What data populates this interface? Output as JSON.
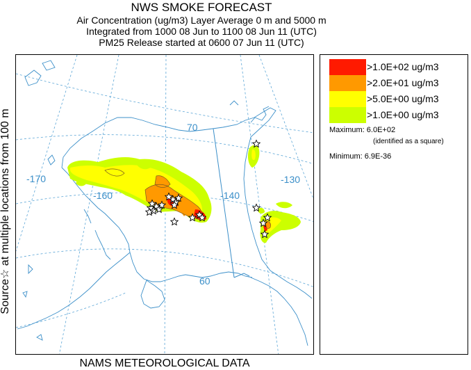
{
  "header": {
    "title": "NWS SMOKE FORECAST",
    "line1": "Air Concentration (ug/m3) Layer Average    0 m and  5000 m",
    "line2": "Integrated from 1000 08 Jun to 1100 08 Jun 11 (UTC)",
    "line3": "PM25 Release started at 0600 07 Jun 11 (UTC)"
  },
  "side_label": "Source☆ at multiple locations  from   100 m",
  "footer_label": "NAMS METEOROLOGICAL DATA",
  "map": {
    "latitude_labels": [
      "70",
      "60"
    ],
    "longitude_labels": [
      "-170",
      "-160",
      "-140",
      "-130"
    ],
    "colors": {
      "coast": "#3b8fc9",
      "graticule": "#5aa5d6",
      "contour": "#7a5a20",
      "source_marker": "#000000"
    }
  },
  "legend": {
    "items": [
      {
        "label": ">1.0E+02 ug/m3",
        "color": "#ff1a00"
      },
      {
        "label": ">2.0E+01 ug/m3",
        "color": "#ff9900"
      },
      {
        "label": ">5.0E+00 ug/m3",
        "color": "#ffff00"
      },
      {
        "label": ">1.0E+00 ug/m3",
        "color": "#ccff00"
      }
    ],
    "maximum": "Maximum: 6.0E+02",
    "maximum_note": "(identified as a square)",
    "minimum": "Minimum: 6.9E-36"
  }
}
